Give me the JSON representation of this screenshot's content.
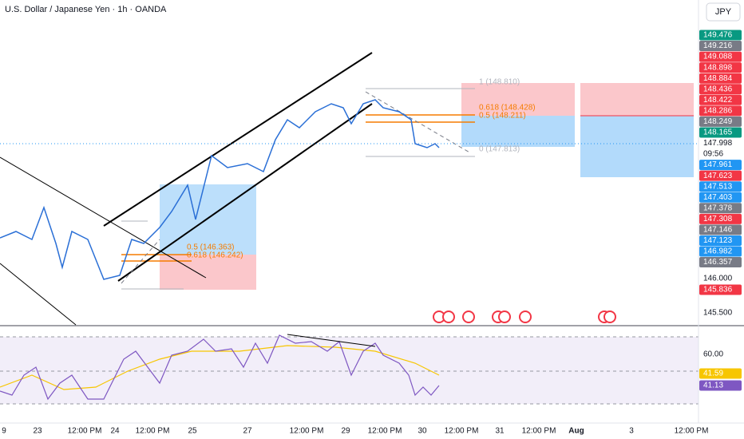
{
  "header": {
    "title": "U.S. Dollar / Japanese Yen · 1h · OANDA",
    "currency_button": "JPY"
  },
  "price_axis": [
    {
      "label": "149.476",
      "color": "#089981"
    },
    {
      "label": "149.216",
      "color": "#787b86"
    },
    {
      "label": "149.088",
      "color": "#f23645"
    },
    {
      "label": "148.898",
      "color": "#f23645"
    },
    {
      "label": "148.884",
      "color": "#f23645"
    },
    {
      "label": "148.436",
      "color": "#f23645"
    },
    {
      "label": "148.422",
      "color": "#f23645"
    },
    {
      "label": "148.286",
      "color": "#f23645"
    },
    {
      "label": "148.249",
      "color": "#787b86"
    },
    {
      "label": "148.165",
      "color": "#089981"
    },
    {
      "label": "147.998",
      "color": "#ffffff"
    },
    {
      "label": "09:56",
      "color": "#ffffff"
    },
    {
      "label": "147.961",
      "color": "#2196f3"
    },
    {
      "label": "147.623",
      "color": "#f23645"
    },
    {
      "label": "147.513",
      "color": "#2196f3"
    },
    {
      "label": "147.403",
      "color": "#2196f3"
    },
    {
      "label": "147.378",
      "color": "#787b86"
    },
    {
      "label": "147.308",
      "color": "#f23645"
    },
    {
      "label": "147.146",
      "color": "#787b86"
    },
    {
      "label": "147.123",
      "color": "#2196f3"
    },
    {
      "label": "146.982",
      "color": "#2196f3"
    },
    {
      "label": "146.357",
      "color": "#787b86"
    }
  ],
  "price_axis_lower": [
    {
      "label": "146.000",
      "color": "#ffffff"
    },
    {
      "label": "145.836",
      "color": "#f23645"
    },
    {
      "label": "145.500",
      "color": "#ffffff"
    }
  ],
  "rsi_axis": [
    {
      "label": "60.00",
      "color": "#ffffff"
    },
    {
      "label": "41.59",
      "color": "#f7c600"
    },
    {
      "label": "41.13",
      "color": "#7e57c2"
    }
  ],
  "fib_right": [
    "1 (148.810)",
    "0.618 (148.428)",
    "0.5 (148.211)",
    "0 (147.813)"
  ],
  "fib_left": [
    "0.5 (146.363)",
    "0.618 (146.242)"
  ],
  "time_axis": [
    "9",
    "23",
    "12:00 PM",
    "24",
    "12:00 PM",
    "25",
    "27",
    "12:00 PM",
    "29",
    "12:00 PM",
    "30",
    "12:00 PM",
    "31",
    "12:00 PM",
    "Aug",
    "3",
    "12:00 PM"
  ]
}
